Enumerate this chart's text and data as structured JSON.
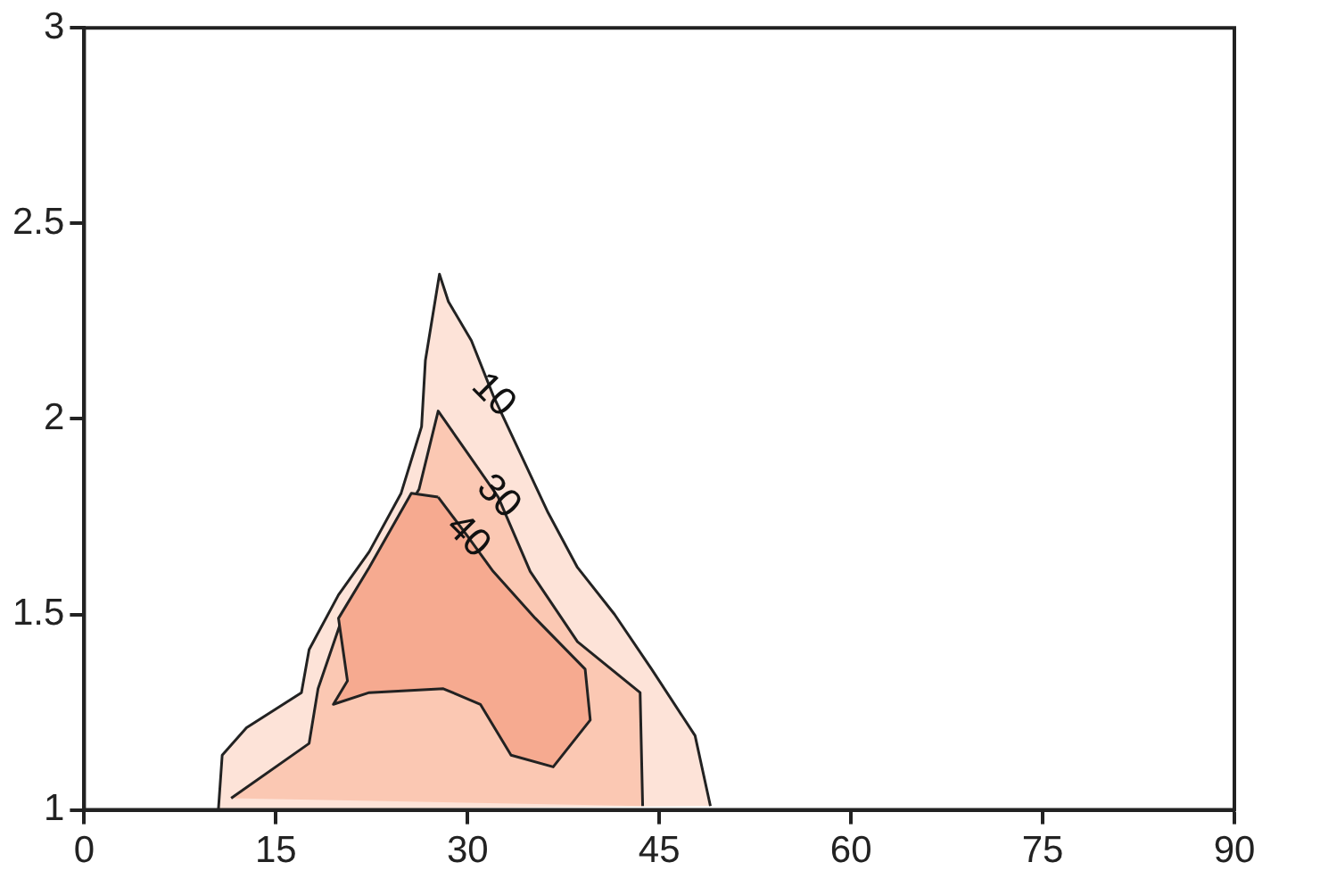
{
  "chart_data": {
    "type": "area",
    "xlim": [
      0,
      90
    ],
    "xticks": [
      0,
      15,
      30,
      45,
      60,
      75,
      90
    ],
    "ylim": [
      1,
      3
    ],
    "yticks": [
      1,
      1.5,
      2,
      2.5,
      3
    ],
    "grid": false,
    "legend": false,
    "line_style": "solid",
    "marker": "none",
    "series": [
      {
        "name": "10",
        "color": "#fde3d8",
        "x": [
          10.5,
          10.8,
          12.7,
          17,
          17.6,
          19.9,
          22.3,
          24.8,
          26.4,
          26.7,
          27.8,
          28.5,
          30.3,
          32,
          36.3,
          38.6,
          41.5,
          44.4,
          47.8,
          49
        ],
        "values": [
          1.0,
          1.14,
          1.21,
          1.3,
          1.41,
          1.55,
          1.66,
          1.81,
          1.98,
          2.15,
          2.37,
          2.3,
          2.2,
          2.06,
          1.76,
          1.62,
          1.5,
          1.36,
          1.19,
          1.01
        ]
      },
      {
        "name": "30",
        "color": "#fbc8b3",
        "x": [
          11.5,
          17.6,
          18.3,
          20.5,
          23.8,
          26.2,
          27.7,
          32.4,
          34.9,
          38.6,
          43.5,
          43.7
        ],
        "values": [
          1.03,
          1.17,
          1.31,
          1.52,
          1.69,
          1.82,
          2.02,
          1.8,
          1.61,
          1.43,
          1.3,
          1.01
        ]
      },
      {
        "name": "40",
        "color": "#f6aa90",
        "x": [
          27.7,
          25.6,
          22.3,
          19.9,
          20.6,
          19.5,
          22.3,
          28.1,
          31,
          33.4,
          36.7,
          39.6,
          39.2,
          35.3,
          32,
          30,
          27.7
        ],
        "values": [
          1.8,
          1.81,
          1.62,
          1.49,
          1.33,
          1.27,
          1.3,
          1.31,
          1.27,
          1.14,
          1.11,
          1.23,
          1.36,
          1.49,
          1.61,
          1.7,
          1.8
        ]
      }
    ]
  }
}
